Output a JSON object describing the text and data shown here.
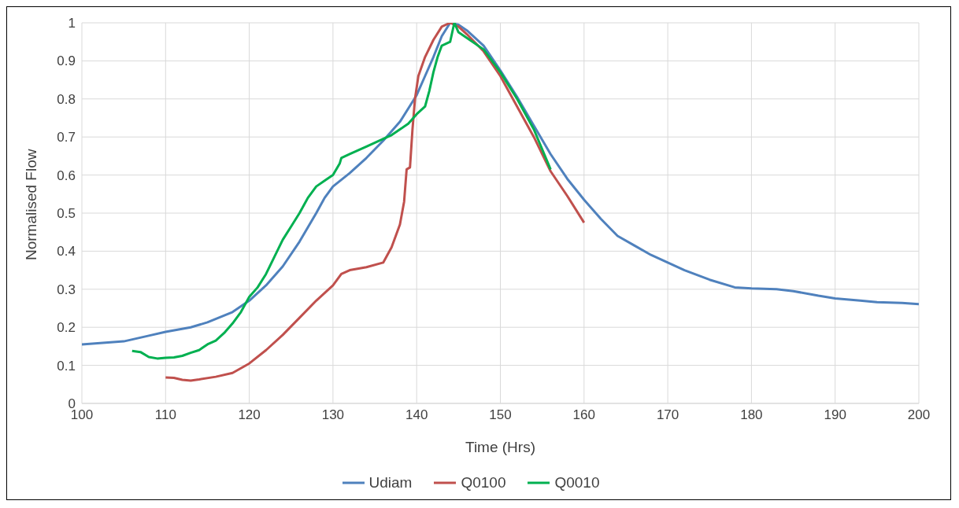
{
  "chart_data": {
    "type": "line",
    "xlabel": "Time (Hrs)",
    "ylabel": "Normalised Flow",
    "xlim": [
      100,
      200
    ],
    "xticks": [
      100,
      110,
      120,
      130,
      140,
      150,
      160,
      170,
      180,
      190,
      200
    ],
    "ylim": [
      0,
      1
    ],
    "yticks": [
      0,
      0.1,
      0.2,
      0.3,
      0.4,
      0.5,
      0.6,
      0.7,
      0.8,
      0.9,
      1
    ],
    "grid": true,
    "legend": "bottom",
    "marker": "none",
    "line_style": "solid",
    "series": [
      {
        "name": "Udiam",
        "color": "#4f81bd",
        "x": [
          100,
          105,
          108,
          110,
          113,
          115,
          118,
          120,
          122,
          124,
          126,
          128,
          129,
          130,
          132,
          134,
          136,
          138,
          140,
          141,
          142,
          143,
          144,
          145,
          146,
          148,
          150,
          152,
          154,
          156,
          158,
          160,
          162,
          164,
          166,
          168,
          170,
          172,
          175,
          178,
          180,
          183,
          185,
          188,
          190,
          193,
          195,
          198,
          200
        ],
        "values": [
          0.155,
          0.163,
          0.178,
          0.188,
          0.2,
          0.213,
          0.24,
          0.27,
          0.31,
          0.36,
          0.425,
          0.5,
          0.54,
          0.57,
          0.605,
          0.645,
          0.69,
          0.74,
          0.81,
          0.86,
          0.91,
          0.965,
          1.0,
          0.995,
          0.98,
          0.94,
          0.875,
          0.805,
          0.73,
          0.655,
          0.59,
          0.535,
          0.485,
          0.44,
          0.415,
          0.39,
          0.37,
          0.35,
          0.325,
          0.305,
          0.302,
          0.3,
          0.295,
          0.283,
          0.276,
          0.27,
          0.266,
          0.264,
          0.261
        ]
      },
      {
        "name": "Q0100",
        "color": "#c0504d",
        "x": [
          110,
          111,
          112,
          113,
          114,
          116,
          118,
          120,
          122,
          124,
          126,
          128,
          130,
          131,
          132,
          134,
          136,
          137,
          138,
          138.5,
          138.8,
          139.2,
          139.5,
          139.8,
          140.2,
          141,
          142,
          143,
          144,
          145,
          146,
          148,
          150,
          152,
          154,
          156,
          158,
          160
        ],
        "values": [
          0.068,
          0.067,
          0.062,
          0.06,
          0.063,
          0.07,
          0.08,
          0.105,
          0.14,
          0.18,
          0.225,
          0.27,
          0.31,
          0.34,
          0.35,
          0.358,
          0.37,
          0.41,
          0.47,
          0.53,
          0.615,
          0.62,
          0.72,
          0.8,
          0.86,
          0.91,
          0.955,
          0.99,
          1.0,
          0.99,
          0.97,
          0.925,
          0.86,
          0.78,
          0.7,
          0.61,
          0.545,
          0.475
        ]
      },
      {
        "name": "Q0010",
        "color": "#00b050",
        "x": [
          106,
          107,
          108,
          109,
          110,
          111,
          112,
          113,
          114,
          115,
          116,
          117,
          118,
          119,
          120,
          121,
          122,
          123,
          124,
          125,
          126,
          127,
          128,
          129,
          130,
          130.8,
          131,
          132,
          134,
          136,
          137,
          138,
          139,
          140,
          141,
          141.5,
          142,
          142.5,
          143,
          144,
          144.5,
          145,
          146,
          148,
          150,
          152,
          154,
          156
        ],
        "values": [
          0.138,
          0.135,
          0.122,
          0.118,
          0.12,
          0.121,
          0.125,
          0.133,
          0.14,
          0.155,
          0.165,
          0.185,
          0.21,
          0.24,
          0.28,
          0.305,
          0.34,
          0.385,
          0.43,
          0.465,
          0.5,
          0.54,
          0.57,
          0.585,
          0.6,
          0.63,
          0.645,
          0.655,
          0.675,
          0.695,
          0.705,
          0.72,
          0.735,
          0.76,
          0.78,
          0.82,
          0.87,
          0.91,
          0.94,
          0.95,
          1.0,
          0.975,
          0.96,
          0.93,
          0.87,
          0.8,
          0.72,
          0.615
        ]
      }
    ]
  }
}
